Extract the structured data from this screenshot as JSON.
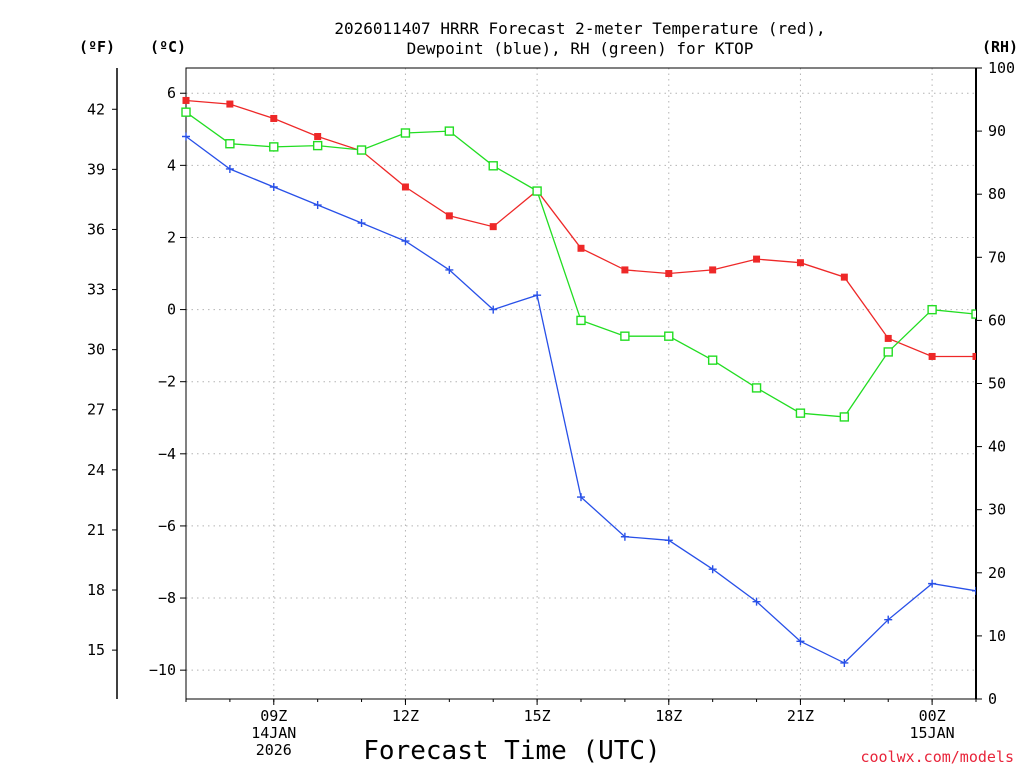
{
  "chart_data": {
    "type": "line",
    "title": [
      "2026011407 HRRR Forecast 2-meter Temperature (red),",
      "Dewpoint (blue), RH (green) for KTOP"
    ],
    "xlabel": "Forecast Time (UTC)",
    "credit": "coolwx.com/models",
    "units": {
      "fahrenheit": "(ºF)",
      "celsius": "(ºC)",
      "rh": "(RH)"
    },
    "x_hours": [
      7,
      8,
      9,
      10,
      11,
      12,
      13,
      14,
      15,
      16,
      17,
      18,
      19,
      20,
      21,
      22,
      23,
      24,
      25
    ],
    "xlim": [
      7,
      25
    ],
    "x_ticks": [
      {
        "hour": 9,
        "lines": [
          "09Z",
          "14JAN",
          "2026"
        ]
      },
      {
        "hour": 12,
        "lines": [
          "12Z"
        ]
      },
      {
        "hour": 15,
        "lines": [
          "15Z"
        ]
      },
      {
        "hour": 18,
        "lines": [
          "18Z"
        ]
      },
      {
        "hour": 21,
        "lines": [
          "21Z"
        ]
      },
      {
        "hour": 24,
        "lines": [
          "00Z",
          "15JAN"
        ]
      }
    ],
    "y_celsius": {
      "ylim": [
        -10.8,
        6.7
      ],
      "ticks": [
        6,
        4,
        2,
        0,
        -2,
        -4,
        -6,
        -8,
        -10
      ],
      "labels": [
        "6",
        "4",
        "2",
        "0",
        "−2",
        "−4",
        "−6",
        "−8",
        "−10"
      ]
    },
    "y_fahrenheit": {
      "ticks": [
        42,
        39,
        36,
        33,
        30,
        27,
        24,
        21,
        18,
        15
      ]
    },
    "y_rh": {
      "ylim": [
        0,
        100
      ],
      "ticks": [
        100,
        90,
        80,
        70,
        60,
        50,
        40,
        30,
        20,
        10,
        0
      ]
    },
    "series": [
      {
        "name": "Temperature",
        "axis": "celsius",
        "color": "#ee2828",
        "marker": "filled-square",
        "values": [
          5.8,
          5.7,
          5.3,
          4.8,
          4.4,
          3.4,
          2.6,
          2.3,
          3.3,
          1.7,
          1.1,
          1.0,
          1.1,
          1.4,
          1.3,
          0.9,
          -0.8,
          -1.3,
          -1.3
        ]
      },
      {
        "name": "Dewpoint",
        "axis": "celsius",
        "color": "#2850e8",
        "marker": "plus",
        "values": [
          4.8,
          3.9,
          3.4,
          2.9,
          2.4,
          1.9,
          1.1,
          0.0,
          0.4,
          -5.2,
          -6.3,
          -6.4,
          -7.2,
          -8.1,
          -9.2,
          -9.8,
          -8.6,
          -7.6,
          -7.8
        ]
      },
      {
        "name": "RH",
        "axis": "rh",
        "color": "#22dd22",
        "marker": "open-square",
        "values": [
          93,
          88,
          87.5,
          87.7,
          87,
          89.7,
          90,
          84.5,
          80.5,
          60,
          57.5,
          57.5,
          53.7,
          49.3,
          45.3,
          44.7,
          55,
          61.7,
          61
        ]
      }
    ]
  }
}
